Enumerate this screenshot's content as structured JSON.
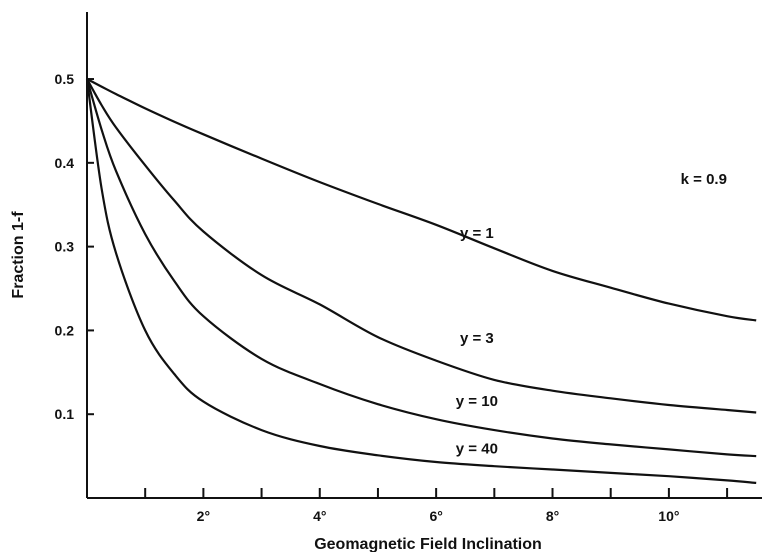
{
  "chart_data": {
    "type": "line",
    "title": "",
    "xlabel": "Geomagnetic Field Inclination",
    "ylabel": "Fraction 1-f",
    "xlim": [
      0,
      11.6
    ],
    "ylim": [
      0,
      0.58
    ],
    "x_ticks": [
      1,
      2,
      3,
      4,
      5,
      6,
      7,
      8,
      9,
      10,
      11
    ],
    "x_tick_labels": [
      {
        "x": 2,
        "label": "2°"
      },
      {
        "x": 4,
        "label": "4°"
      },
      {
        "x": 6,
        "label": "6°"
      },
      {
        "x": 8,
        "label": "8°"
      },
      {
        "x": 10,
        "label": "10°"
      }
    ],
    "y_tick_labels": [
      {
        "y": 0.1,
        "label": "0.1"
      },
      {
        "y": 0.2,
        "label": "0.2"
      },
      {
        "y": 0.3,
        "label": "0.3"
      },
      {
        "y": 0.4,
        "label": "0.4"
      },
      {
        "y": 0.5,
        "label": "0.5"
      }
    ],
    "grid": false,
    "annotation": {
      "text": "k = 0.9",
      "x": 10.6,
      "y": 0.375
    },
    "x": [
      0,
      0.25,
      0.5,
      1,
      1.5,
      2,
      3,
      4,
      5,
      6,
      7,
      8,
      9,
      10,
      11,
      11.5
    ],
    "series": [
      {
        "name": "y = 1",
        "label_at": {
          "x": 6.7,
          "y": 0.31
        },
        "values": [
          0.5,
          0.491,
          0.482,
          0.465,
          0.449,
          0.434,
          0.405,
          0.377,
          0.351,
          0.326,
          0.298,
          0.271,
          0.251,
          0.232,
          0.217,
          0.212
        ]
      },
      {
        "name": "y = 3",
        "label_at": {
          "x": 6.7,
          "y": 0.185
        },
        "values": [
          0.5,
          0.469,
          0.442,
          0.397,
          0.355,
          0.318,
          0.266,
          0.231,
          0.192,
          0.164,
          0.141,
          0.128,
          0.119,
          0.111,
          0.105,
          0.102
        ]
      },
      {
        "name": "y = 10",
        "label_at": {
          "x": 6.7,
          "y": 0.11
        },
        "values": [
          0.5,
          0.44,
          0.39,
          0.315,
          0.259,
          0.217,
          0.166,
          0.136,
          0.112,
          0.094,
          0.081,
          0.071,
          0.064,
          0.058,
          0.052,
          0.05
        ]
      },
      {
        "name": "y = 40",
        "label_at": {
          "x": 6.7,
          "y": 0.053
        },
        "values": [
          0.5,
          0.37,
          0.292,
          0.2,
          0.148,
          0.115,
          0.081,
          0.062,
          0.051,
          0.043,
          0.038,
          0.034,
          0.03,
          0.026,
          0.021,
          0.018
        ]
      }
    ]
  }
}
